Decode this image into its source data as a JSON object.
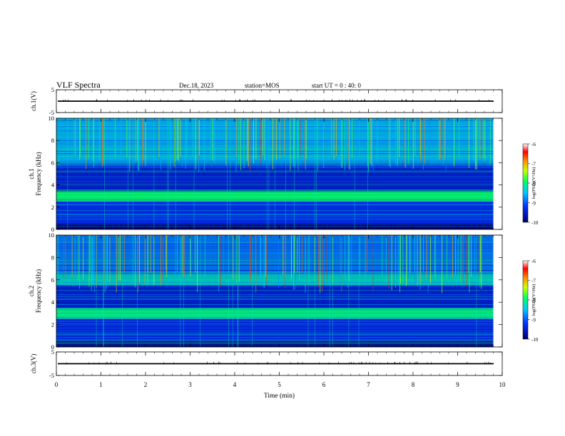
{
  "header": {
    "title": "VLF Spectra",
    "date": "Dec.18, 2023",
    "station": "station=MOS",
    "start": "start  UT  =   0 : 40: 0"
  },
  "chart_data": [
    {
      "type": "line",
      "panel": "waveform-ch1",
      "ylabel": "ch.1(V)",
      "ylim": [
        -5,
        5
      ],
      "y_ticks": [
        "5",
        "-5"
      ],
      "series_level": 0
    },
    {
      "type": "heatmap",
      "panel": "spectrogram-ch1",
      "ylabel": "ch.1 Frequency (kHz)",
      "ylim": [
        0,
        10
      ],
      "y_ticks": [
        "0",
        "2",
        "4",
        "6",
        "8",
        "10"
      ],
      "colorbar": {
        "label": "log(PSD)(V²/Hz)",
        "ticks": [
          "-6",
          "-7",
          "-8",
          "-9",
          "-10"
        ],
        "range": [
          -10,
          -6
        ]
      },
      "bands_khz": [
        {
          "from": 0.0,
          "to": 0.5,
          "level": -10.0
        },
        {
          "from": 0.5,
          "to": 2.5,
          "level": -9.2
        },
        {
          "from": 2.5,
          "to": 3.5,
          "level": -8.0
        },
        {
          "from": 3.5,
          "to": 5.5,
          "level": -9.4
        },
        {
          "from": 5.5,
          "to": 6.0,
          "level": -9.0
        },
        {
          "from": 6.0,
          "to": 10.0,
          "level": -8.5
        }
      ]
    },
    {
      "type": "heatmap",
      "panel": "spectrogram-ch2",
      "ylabel": "ch.2 Frequency (kHz)",
      "ylim": [
        0,
        10
      ],
      "y_ticks": [
        "0",
        "2",
        "4",
        "6",
        "8",
        "10"
      ],
      "colorbar": {
        "label": "log(PSD)(V²/Hz)",
        "ticks": [
          "-6",
          "-7",
          "-8",
          "-9",
          "-10"
        ],
        "range": [
          -10,
          -6
        ]
      },
      "bands_khz": [
        {
          "from": 0.0,
          "to": 0.5,
          "level": -10.0
        },
        {
          "from": 0.5,
          "to": 2.5,
          "level": -9.3
        },
        {
          "from": 2.5,
          "to": 3.5,
          "level": -8.2
        },
        {
          "from": 3.5,
          "to": 5.5,
          "level": -9.4
        },
        {
          "from": 5.5,
          "to": 6.5,
          "level": -8.3
        },
        {
          "from": 6.5,
          "to": 10.0,
          "level": -8.8
        }
      ]
    },
    {
      "type": "line",
      "panel": "waveform-ch3",
      "ylabel": "ch.3(V)",
      "ylim": [
        -5,
        5
      ],
      "y_ticks": [
        "5",
        "-5"
      ],
      "series_level": 0
    }
  ],
  "x_axis": {
    "label": "Time  (min)",
    "range": [
      0,
      10
    ],
    "ticks": [
      "0",
      "1",
      "2",
      "3",
      "4",
      "5",
      "6",
      "7",
      "8",
      "9",
      "10"
    ],
    "data_end_min": 9.8
  },
  "colors": {
    "background": "#000033",
    "axis": "#000000"
  }
}
